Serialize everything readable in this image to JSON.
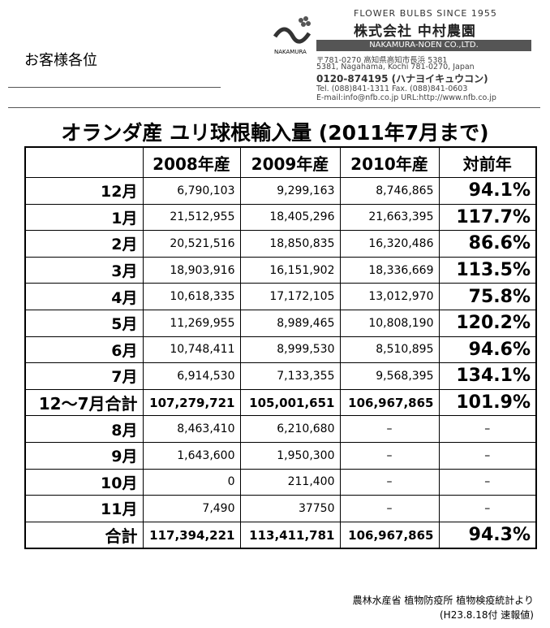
{
  "header": {
    "greeting": "お客様各位",
    "company": {
      "tagline": "FLOWER BULBS SINCE 1955",
      "name_ja": "株式会社 中村農園",
      "name_en": "NAKAMURA-NOEN CO.,LTD.",
      "logo_text": "NAKAMURA",
      "address_ja": "〒781-0270 高知県高知市長浜 5381",
      "address_en": "5381, Nagahama, Kochi 781-0270, Japan",
      "free_dial": "0120-874195 (ハナヨイキュウコン)",
      "tel_fax": "Tel. (088)841-1311  Fax. (088)841-0603",
      "email_url": "E-mail:info@nfb.co.jp  URL:http://www.nfb.co.jp"
    }
  },
  "title": "オランダ産  ユリ球根輸入量 (2011年7月まで)",
  "table": {
    "columns": [
      "",
      "2008年産",
      "2009年産",
      "2010年産",
      "対前年"
    ],
    "rows": [
      [
        "12月",
        "6,790,103",
        "9,299,163",
        "8,746,865",
        "94.1%"
      ],
      [
        "1月",
        "21,512,955",
        "18,405,296",
        "21,663,395",
        "117.7%"
      ],
      [
        "2月",
        "20,521,516",
        "18,850,835",
        "16,320,486",
        "86.6%"
      ],
      [
        "3月",
        "18,903,916",
        "16,151,902",
        "18,336,669",
        "113.5%"
      ],
      [
        "4月",
        "10,618,335",
        "17,172,105",
        "13,012,970",
        "75.8%"
      ],
      [
        "5月",
        "11,269,955",
        "8,989,465",
        "10,808,190",
        "120.2%"
      ],
      [
        "6月",
        "10,748,411",
        "8,999,530",
        "8,510,895",
        "94.6%"
      ],
      [
        "7月",
        "6,914,530",
        "7,133,355",
        "9,568,395",
        "134.1%"
      ],
      [
        "12～7月合計",
        "107,279,721",
        "105,001,651",
        "106,967,865",
        "101.9%"
      ],
      [
        "8月",
        "8,463,410",
        "6,210,680",
        "–",
        "–"
      ],
      [
        "9月",
        "1,643,600",
        "1,950,300",
        "–",
        "–"
      ],
      [
        "10月",
        "0",
        "211,400",
        "–",
        "–"
      ],
      [
        "11月",
        "7,490",
        "37750",
        "–",
        "–"
      ],
      [
        "合計",
        "117,394,221",
        "113,411,781",
        "106,967,865",
        "94.3%"
      ]
    ]
  },
  "footer": {
    "source": "農林水産省  植物防疫所  植物検疫統計より",
    "note": "(H23.8.18付  速報値)"
  }
}
